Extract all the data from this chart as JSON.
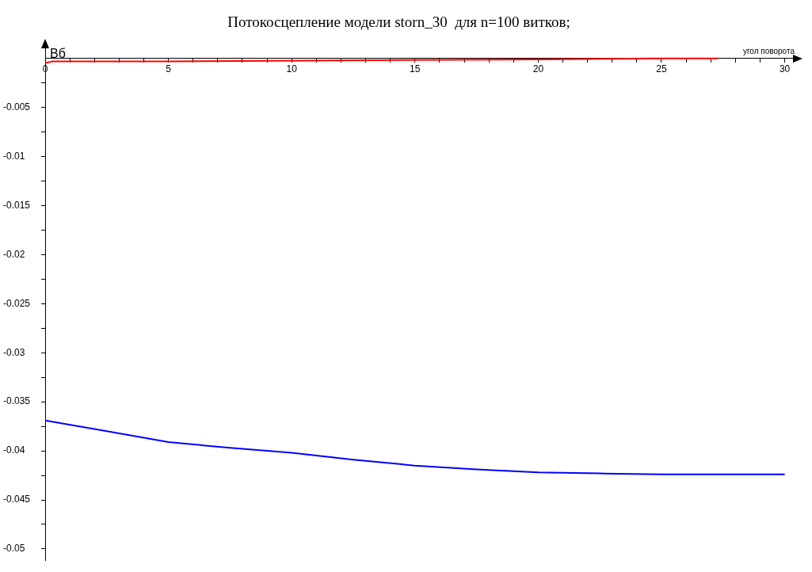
{
  "chart_data": {
    "type": "line",
    "title": "Потокосцепление модели storn_30  для n=100 витков;",
    "xlabel": "угол поворота",
    "ylabel": "Вб",
    "xlim": [
      0,
      30.4
    ],
    "ylim": [
      -0.0512,
      0.0012
    ],
    "xticks": [
      0,
      {
        "value": 1,
        "label": null
      },
      {
        "value": 2,
        "label": null
      },
      {
        "value": 3,
        "label": null
      },
      {
        "value": 4,
        "label": null
      },
      5,
      {
        "value": 6,
        "label": null
      },
      {
        "value": 7,
        "label": null
      },
      {
        "value": 8,
        "label": null
      },
      {
        "value": 9,
        "label": null
      },
      10,
      {
        "value": 11,
        "label": null
      },
      {
        "value": 12,
        "label": null
      },
      {
        "value": 13,
        "label": null
      },
      {
        "value": 14,
        "label": null
      },
      15,
      {
        "value": 16,
        "label": null
      },
      {
        "value": 17,
        "label": null
      },
      {
        "value": 18,
        "label": null
      },
      {
        "value": 19,
        "label": null
      },
      20,
      {
        "value": 21,
        "label": null
      },
      {
        "value": 22,
        "label": null
      },
      {
        "value": 23,
        "label": null
      },
      {
        "value": 24,
        "label": null
      },
      25,
      {
        "value": 26,
        "label": null
      },
      {
        "value": 27,
        "label": null
      },
      {
        "value": 28,
        "label": null
      },
      {
        "value": 29,
        "label": null
      },
      30
    ],
    "yticks": [
      {
        "value": -0.0025,
        "label": null
      },
      -0.005,
      {
        "value": -0.0075,
        "label": null
      },
      -0.01,
      {
        "value": -0.0125,
        "label": null
      },
      -0.015,
      {
        "value": -0.0175,
        "label": null
      },
      -0.02,
      {
        "value": -0.0225,
        "label": null
      },
      -0.025,
      {
        "value": -0.0275,
        "label": null
      },
      -0.03,
      {
        "value": -0.0325,
        "label": null
      },
      -0.035,
      {
        "value": -0.0375,
        "label": null
      },
      -0.04,
      {
        "value": -0.0425,
        "label": null
      },
      -0.045,
      {
        "value": -0.0475,
        "label": null
      },
      -0.05
    ],
    "grid": false,
    "legend": false,
    "marker": "none",
    "line_style": "solid",
    "series": [
      {
        "color": "#ff0000",
        "x": [
          0,
          0.3,
          5,
          12,
          20,
          25,
          27.3
        ],
        "values": [
          -0.0005,
          -0.0003,
          -0.0003,
          -0.0002,
          -0.0001,
          0,
          0
        ]
      },
      {
        "color": "#0000ff",
        "x": [
          0,
          2.5,
          5,
          7.5,
          10,
          12.5,
          15,
          17.5,
          20,
          22.5,
          25,
          27.5,
          30
        ],
        "values": [
          -0.0369,
          -0.038,
          -0.0391,
          -0.0397,
          -0.0402,
          -0.0409,
          -0.0415,
          -0.0419,
          -0.0422,
          -0.0423,
          -0.0424,
          -0.0424,
          -0.0424
        ]
      }
    ]
  }
}
